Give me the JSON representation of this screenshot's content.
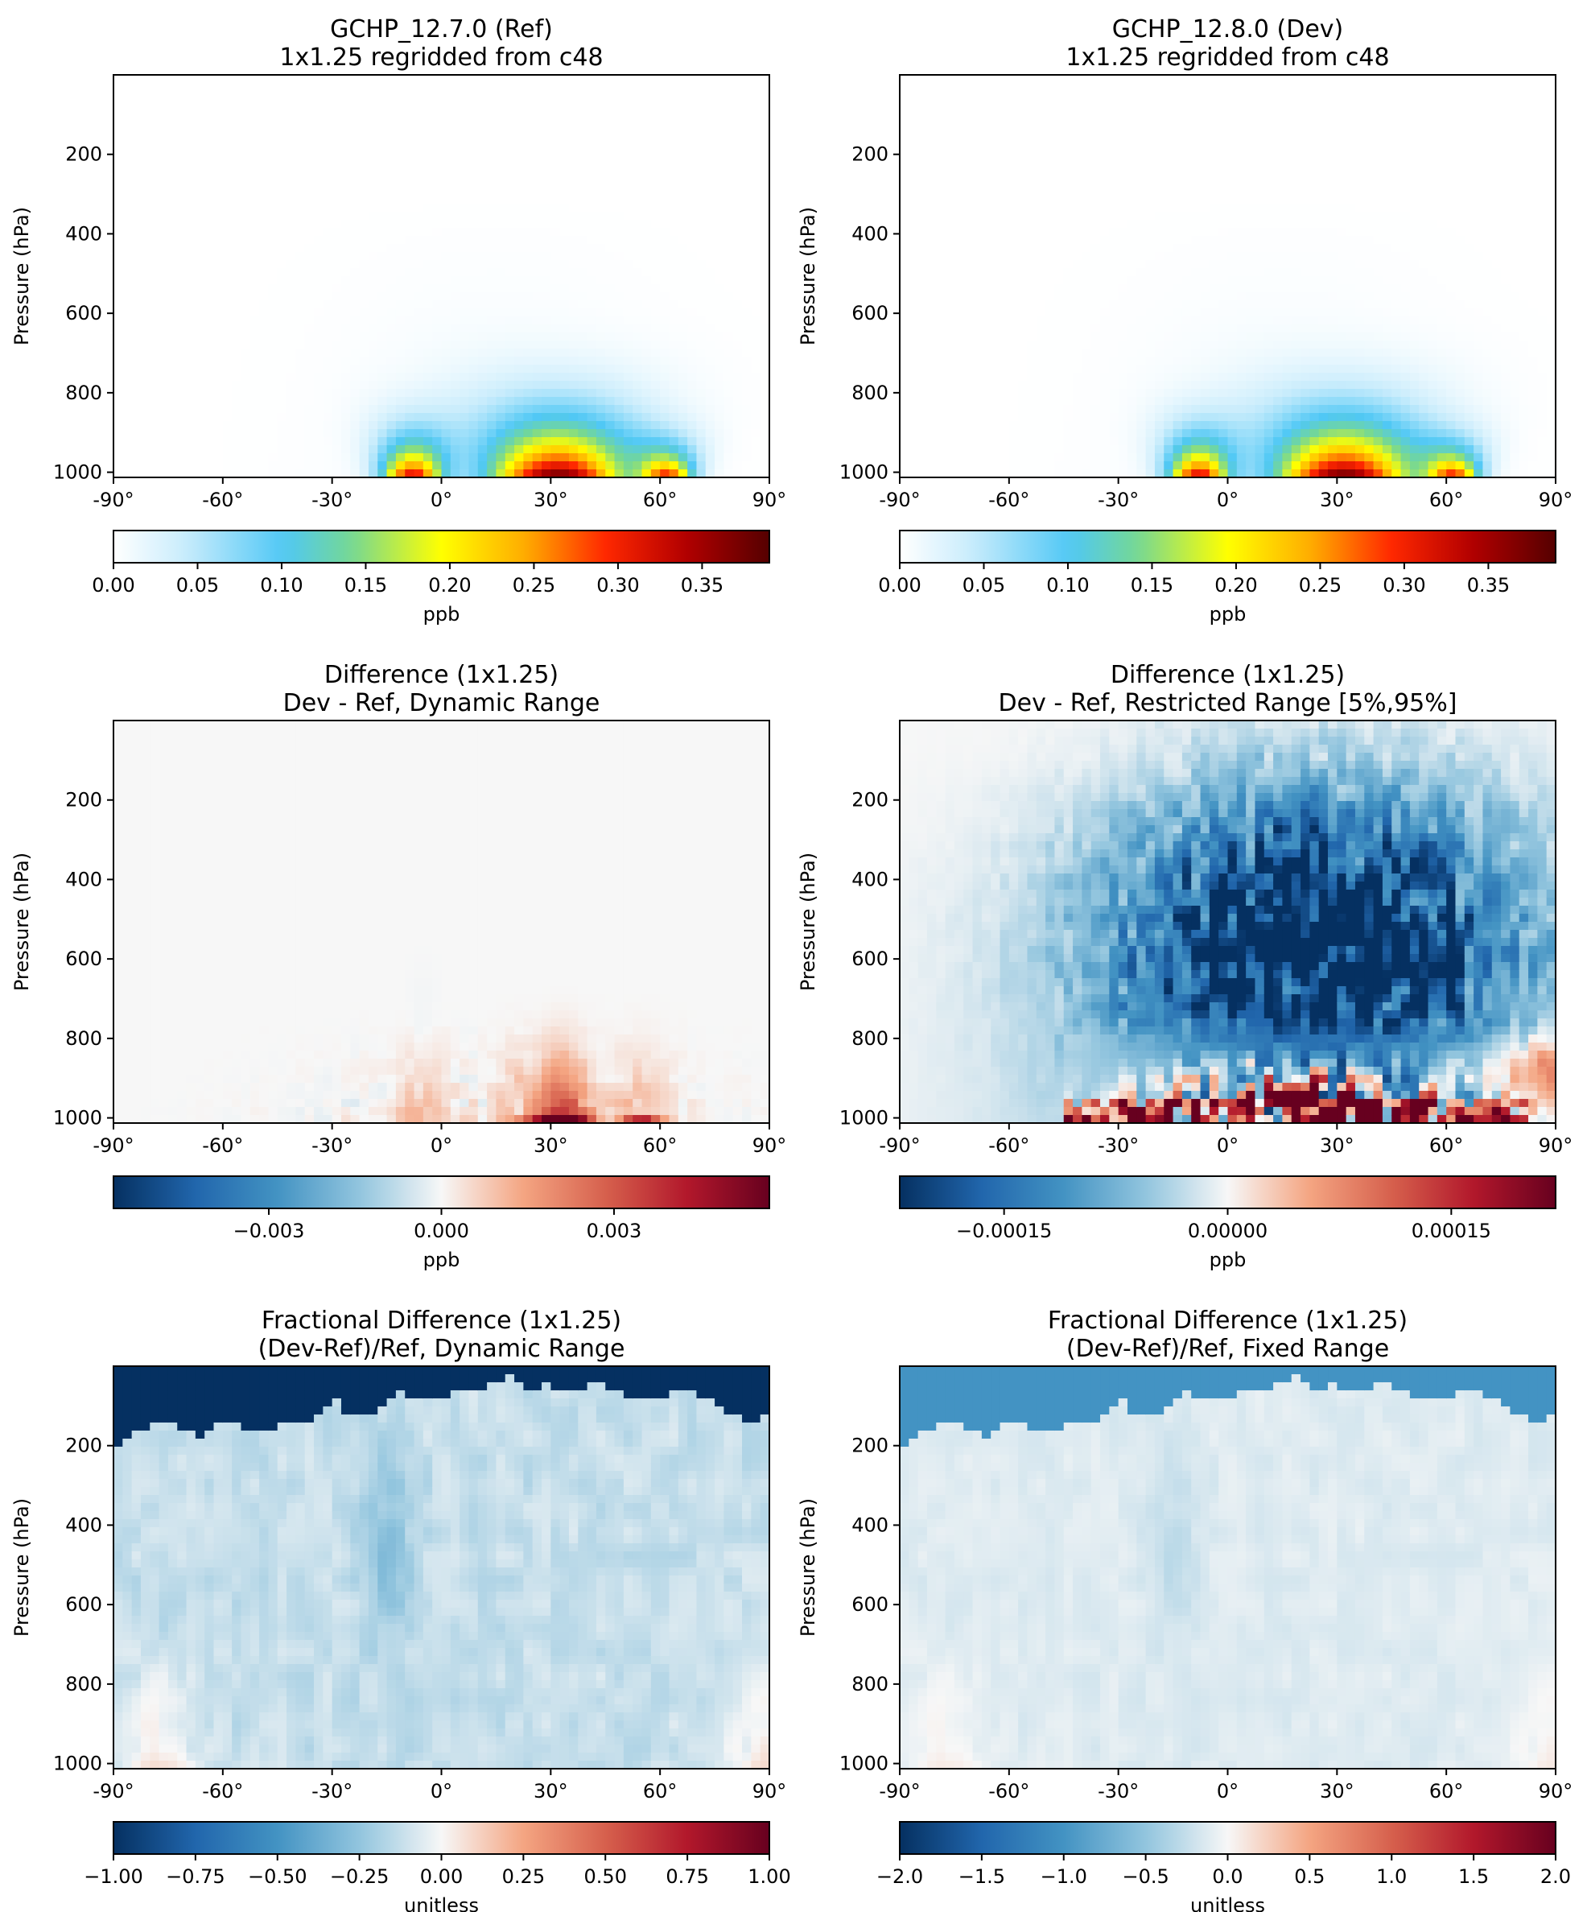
{
  "chart_data": [
    {
      "type": "heatmap",
      "title": "GCHP_12.7.0 (Ref)",
      "subtitle": "1x1.25 regridded from c48",
      "ylabel": "Pressure (hPa)",
      "xticks": [
        "-90°",
        "-60°",
        "-30°",
        "0°",
        "30°",
        "60°",
        "90°"
      ],
      "yticks": [
        "200",
        "400",
        "600",
        "800",
        "1000"
      ],
      "x_range": [
        -90,
        90
      ],
      "y_range_hpa": [
        0,
        1013
      ],
      "colormap": "WhGrYlRd",
      "colorbar": {
        "label": "ppb",
        "range": [
          0,
          0.39
        ],
        "ticks": [
          "0.00",
          "0.05",
          "0.10",
          "0.15",
          "0.20",
          "0.25",
          "0.30",
          "0.35"
        ],
        "tick_values": [
          0,
          0.05,
          0.1,
          0.15,
          0.2,
          0.25,
          0.3,
          0.35
        ]
      },
      "features": [
        {
          "lat": -8,
          "peak_value": 0.33,
          "top_hpa": 650
        },
        {
          "lat": 32,
          "peak_value": 0.38,
          "top_hpa": 500
        },
        {
          "lat": 62,
          "peak_value": 0.3,
          "top_hpa": 750
        }
      ]
    },
    {
      "type": "heatmap",
      "title": "GCHP_12.8.0 (Dev)",
      "subtitle": "1x1.25 regridded from c48",
      "ylabel": "Pressure (hPa)",
      "xticks": [
        "-90°",
        "-60°",
        "-30°",
        "0°",
        "30°",
        "60°",
        "90°"
      ],
      "yticks": [
        "200",
        "400",
        "600",
        "800",
        "1000"
      ],
      "x_range": [
        -90,
        90
      ],
      "y_range_hpa": [
        0,
        1013
      ],
      "colormap": "WhGrYlRd",
      "colorbar": {
        "label": "ppb",
        "range": [
          0,
          0.39
        ],
        "ticks": [
          "0.00",
          "0.05",
          "0.10",
          "0.15",
          "0.20",
          "0.25",
          "0.30",
          "0.35"
        ],
        "tick_values": [
          0,
          0.05,
          0.1,
          0.15,
          0.2,
          0.25,
          0.3,
          0.35
        ]
      },
      "features": [
        {
          "lat": -8,
          "peak_value": 0.33,
          "top_hpa": 650
        },
        {
          "lat": 32,
          "peak_value": 0.38,
          "top_hpa": 500
        },
        {
          "lat": 62,
          "peak_value": 0.3,
          "top_hpa": 750
        }
      ]
    },
    {
      "type": "heatmap",
      "title": "Difference (1x1.25)",
      "subtitle": "Dev - Ref, Dynamic Range",
      "ylabel": "Pressure (hPa)",
      "xticks": [
        "-90°",
        "-60°",
        "-30°",
        "0°",
        "30°",
        "60°",
        "90°"
      ],
      "yticks": [
        "200",
        "400",
        "600",
        "800",
        "1000"
      ],
      "x_range": [
        -90,
        90
      ],
      "y_range_hpa": [
        0,
        1013
      ],
      "colormap": "RdBu_r",
      "colorbar": {
        "label": "ppb",
        "range": [
          -0.0057,
          0.0057
        ],
        "ticks": [
          "−0.003",
          "0.000",
          "0.003"
        ],
        "tick_values": [
          -0.003,
          0,
          0.003
        ]
      },
      "features": [
        {
          "lat": 32,
          "value": 0.005,
          "top_hpa": 820
        },
        {
          "lat": -5,
          "value": 0.0015,
          "top_hpa": 760
        },
        {
          "lat": 55,
          "value": 0.001,
          "top_hpa": 870
        }
      ]
    },
    {
      "type": "heatmap",
      "title": "Difference (1x1.25)",
      "subtitle": "Dev - Ref, Restricted Range [5%,95%]",
      "ylabel": "Pressure (hPa)",
      "xticks": [
        "-90°",
        "-60°",
        "-30°",
        "0°",
        "30°",
        "60°",
        "90°"
      ],
      "yticks": [
        "200",
        "400",
        "600",
        "800",
        "1000"
      ],
      "x_range": [
        -90,
        90
      ],
      "y_range_hpa": [
        0,
        1013
      ],
      "colormap": "RdBu_r",
      "colorbar": {
        "label": "ppb",
        "range": [
          -0.00022,
          0.00022
        ],
        "ticks": [
          "−0.00015",
          "0.00000",
          "0.00015"
        ],
        "tick_values": [
          -0.00015,
          0,
          0.00015
        ]
      },
      "features": [
        {
          "region": "lower troposphere -30° to 75°",
          "sign": "positive (saturated)",
          "top_hpa": 760
        },
        {
          "region": "mid troposphere -20° to 75°",
          "sign": "negative (saturated)",
          "top_hpa": 300
        }
      ]
    },
    {
      "type": "heatmap",
      "title": "Fractional Difference (1x1.25)",
      "subtitle": "(Dev-Ref)/Ref, Dynamic Range",
      "ylabel": "Pressure (hPa)",
      "xticks": [
        "-90°",
        "-60°",
        "-30°",
        "0°",
        "30°",
        "60°",
        "90°"
      ],
      "yticks": [
        "200",
        "400",
        "600",
        "800",
        "1000"
      ],
      "x_range": [
        -90,
        90
      ],
      "y_range_hpa": [
        0,
        1013
      ],
      "colormap": "RdBu_r",
      "colorbar": {
        "label": "unitless",
        "range": [
          -1.0,
          1.0
        ],
        "ticks": [
          "−1.00",
          "−0.75",
          "−0.50",
          "−0.25",
          "0.00",
          "0.25",
          "0.50",
          "0.75",
          "1.00"
        ],
        "tick_values": [
          -1,
          -0.75,
          -0.5,
          -0.25,
          0,
          0.25,
          0.5,
          0.75,
          1
        ]
      },
      "features": [
        {
          "region": "upper levels, above ~150-200 hPa",
          "value": -1.0
        },
        {
          "region": "troposphere",
          "value": -0.1
        }
      ]
    },
    {
      "type": "heatmap",
      "title": "Fractional Difference (1x1.25)",
      "subtitle": "(Dev-Ref)/Ref, Fixed Range",
      "ylabel": "Pressure (hPa)",
      "xticks": [
        "-90°",
        "-60°",
        "-30°",
        "0°",
        "30°",
        "60°",
        "90°"
      ],
      "yticks": [
        "200",
        "400",
        "600",
        "800",
        "1000"
      ],
      "x_range": [
        -90,
        90
      ],
      "y_range_hpa": [
        0,
        1013
      ],
      "colormap": "RdBu_r",
      "colorbar": {
        "label": "unitless",
        "range": [
          -2.0,
          2.0
        ],
        "ticks": [
          "−2.0",
          "−1.5",
          "−1.0",
          "−0.5",
          "0.0",
          "0.5",
          "1.0",
          "1.5",
          "2.0"
        ],
        "tick_values": [
          -2,
          -1.5,
          -1,
          -0.5,
          0,
          0.5,
          1,
          1.5,
          2
        ]
      },
      "features": [
        {
          "region": "upper levels, above ~150-200 hPa",
          "value": -1.0
        },
        {
          "region": "troposphere",
          "value": -0.1
        }
      ]
    }
  ]
}
